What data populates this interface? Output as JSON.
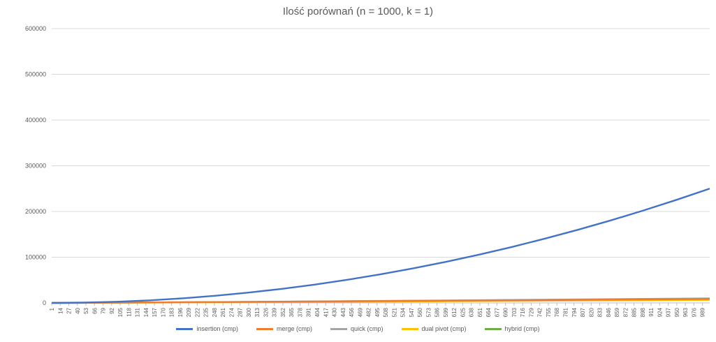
{
  "chart_data": {
    "type": "line",
    "title": "Ilość porównań (n = 1000, k = 1)",
    "xlabel": "",
    "ylabel": "",
    "ylim": [
      0,
      600000
    ],
    "y_ticks": [
      "0",
      "100000",
      "200000",
      "300000",
      "400000",
      "500000",
      "600000"
    ],
    "x_range": [
      1,
      1000
    ],
    "x_ticks": [
      "1",
      "14",
      "27",
      "40",
      "53",
      "66",
      "79",
      "92",
      "105",
      "118",
      "131",
      "144",
      "157",
      "170",
      "183",
      "196",
      "209",
      "222",
      "235",
      "248",
      "261",
      "274",
      "287",
      "300",
      "313",
      "326",
      "339",
      "352",
      "365",
      "378",
      "391",
      "404",
      "417",
      "430",
      "443",
      "456",
      "469",
      "482",
      "495",
      "508",
      "521",
      "534",
      "547",
      "560",
      "573",
      "586",
      "599",
      "612",
      "625",
      "638",
      "651",
      "664",
      "677",
      "690",
      "703",
      "716",
      "729",
      "742",
      "755",
      "768",
      "781",
      "794",
      "807",
      "820",
      "833",
      "846",
      "859",
      "872",
      "885",
      "898",
      "911",
      "924",
      "937",
      "950",
      "963",
      "976",
      "989"
    ],
    "grid": true,
    "legend_position": "bottom",
    "series": [
      {
        "name": "insertion (cmp)",
        "color": "#4472C4",
        "x": [
          1,
          50,
          100,
          150,
          200,
          250,
          300,
          350,
          400,
          450,
          500,
          550,
          600,
          650,
          700,
          750,
          800,
          850,
          900,
          950,
          1000
        ],
        "values": [
          0,
          700,
          2600,
          5700,
          10100,
          15700,
          22600,
          30700,
          40000,
          50700,
          62500,
          75700,
          90000,
          105700,
          122500,
          140700,
          160000,
          180600,
          202500,
          225700,
          250000
        ]
      },
      {
        "name": "merge (cmp)",
        "color": "#ED7D31",
        "x": [
          1,
          100,
          200,
          300,
          400,
          500,
          600,
          700,
          800,
          900,
          1000
        ],
        "values": [
          0,
          550,
          1300,
          2100,
          3000,
          3900,
          4800,
          5700,
          6700,
          7700,
          8700
        ]
      },
      {
        "name": "quick (cmp)",
        "color": "#A5A5A5",
        "x": [
          1,
          100,
          200,
          300,
          400,
          500,
          600,
          700,
          800,
          900,
          1000
        ],
        "values": [
          0,
          650,
          1500,
          2400,
          3400,
          4500,
          5500,
          6600,
          7800,
          8900,
          10100
        ]
      },
      {
        "name": "dual pivot (cmp)",
        "color": "#FFC000",
        "x": [
          1,
          100,
          200,
          300,
          400,
          500,
          600,
          700,
          800,
          900,
          1000
        ],
        "values": [
          0,
          450,
          1000,
          1600,
          2300,
          2900,
          3600,
          4300,
          5000,
          5700,
          6500
        ]
      },
      {
        "name": "hybrid (cmp)",
        "color": "#70AD47",
        "x": [
          1,
          100,
          200,
          300,
          400,
          500,
          600,
          700,
          800,
          900,
          1000
        ],
        "values": [
          0,
          600,
          1400,
          2200,
          3100,
          4100,
          5100,
          6100,
          7200,
          8300,
          9400
        ]
      }
    ]
  }
}
